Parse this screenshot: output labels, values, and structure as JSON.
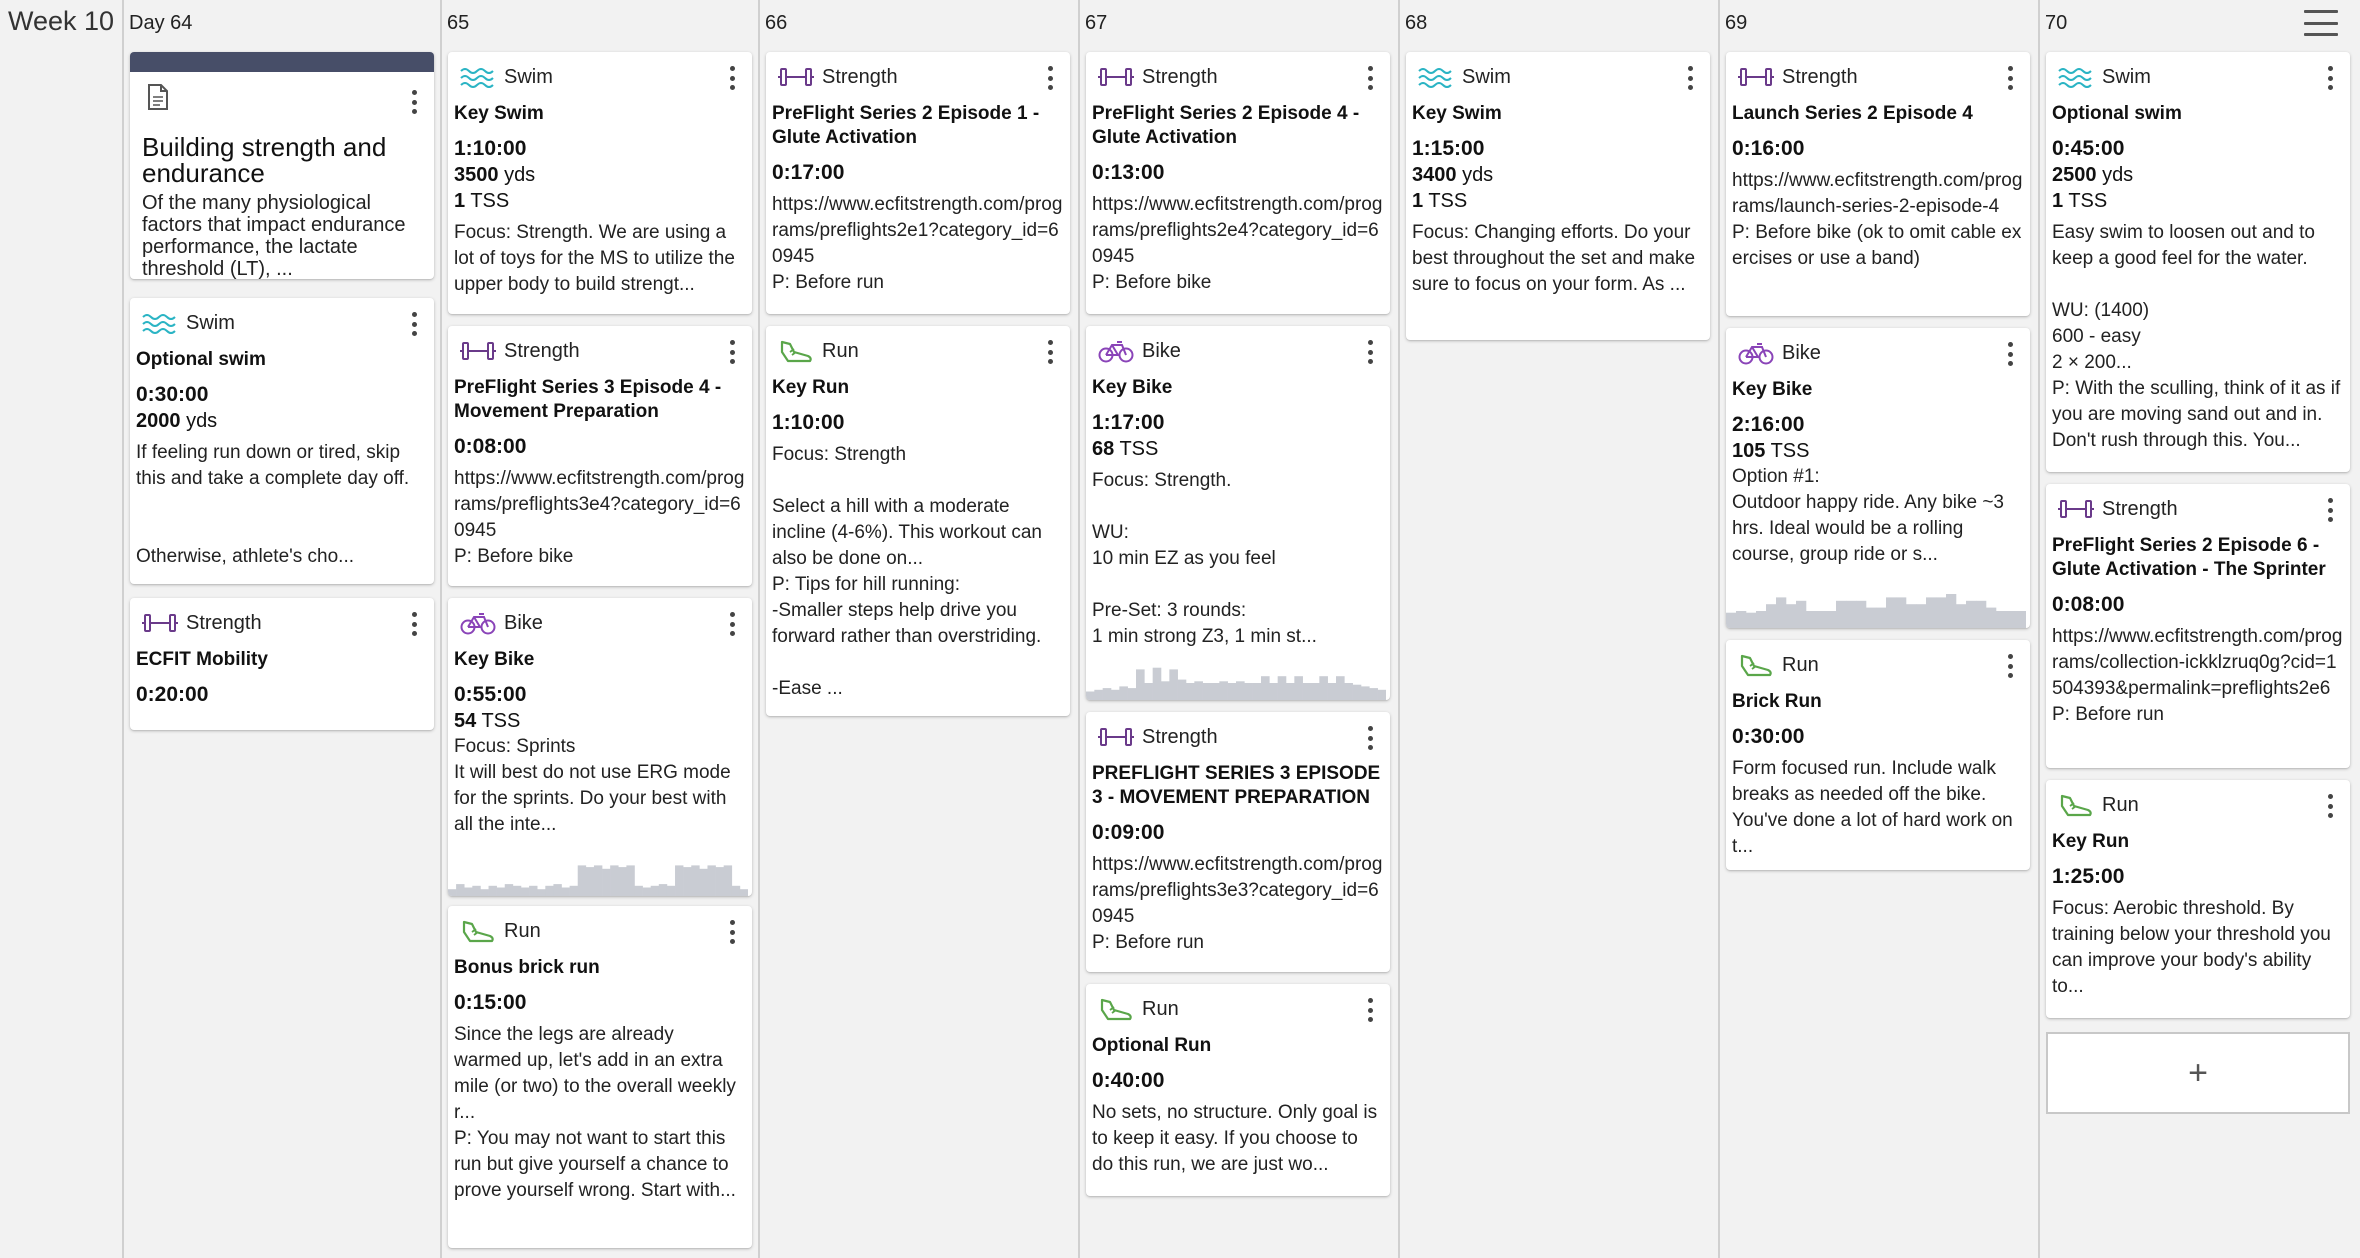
{
  "week": {
    "label": "Week 10"
  },
  "colors": {
    "swim": "#2bb4c4",
    "strength": "#6a3a8a",
    "run": "#5aa64a",
    "bike": "#8a44b8",
    "note_bar": "#474e68"
  },
  "days": [
    {
      "label": "Day 64"
    },
    {
      "label": "65"
    },
    {
      "label": "66"
    },
    {
      "label": "67"
    },
    {
      "label": "68"
    },
    {
      "label": "69"
    },
    {
      "label": "70"
    }
  ],
  "cards": {
    "d64_note": {
      "title": "Building strength and endurance",
      "desc": "Of the many physiological factors that impact endurance performance, the lactate threshold (LT), ..."
    },
    "d64_swim": {
      "sport": "Swim",
      "title": "Optional swim",
      "duration": "0:30:00",
      "dist_val": "2000",
      "dist_unit": "yds",
      "desc": "If feeling run down or tired, skip this and take a complete day off.\n\n\nOtherwise, athlete's cho..."
    },
    "d64_str": {
      "sport": "Strength",
      "title": "ECFIT Mobility",
      "duration": "0:20:00"
    },
    "d65_swim": {
      "sport": "Swim",
      "title": "Key Swim",
      "duration": "1:10:00",
      "dist_val": "3500",
      "dist_unit": "yds",
      "tss_val": "1",
      "tss_unit": "TSS",
      "desc": "Focus: Strength. We are using a lot of toys for the MS to utilize the upper body to build strengt..."
    },
    "d65_str": {
      "sport": "Strength",
      "title": "PreFlight Series 3 Episode 4 - Movement Preparation",
      "duration": "0:08:00",
      "desc": "https://www.ecfitstrength.com/programs/preflights3e4?category_id=60945\nP: Before bike"
    },
    "d65_bike": {
      "sport": "Bike",
      "title": "Key Bike",
      "duration": "0:55:00",
      "tss_val": "54",
      "tss_unit": "TSS",
      "desc": "Focus: Sprints\nIt will best do not use ERG mode for the sprints. Do your best with all the inte..."
    },
    "d65_run": {
      "sport": "Run",
      "title": "Bonus brick run",
      "duration": "0:15:00",
      "desc": "Since the legs are already warmed up, let's add in an extra mile (or two) to the overall weekly r...\nP: You may not want to start this run but give yourself a chance to prove yourself wrong. Start with..."
    },
    "d66_str": {
      "sport": "Strength",
      "title": "PreFlight Series 2 Episode 1 - Glute Activation",
      "duration": "0:17:00",
      "desc": "https://www.ecfitstrength.com/programs/preflights2e1?category_id=60945\nP: Before run"
    },
    "d66_run": {
      "sport": "Run",
      "title": "Key Run",
      "duration": "1:10:00",
      "desc": "Focus: Strength\n\nSelect a hill with a moderate incline (4-6%). This workout can also be done on...\nP: Tips for hill running:\n-Smaller steps help drive you forward rather than overstriding.\n\n-Ease ..."
    },
    "d67_str1": {
      "sport": "Strength",
      "title": "PreFlight Series 2 Episode 4 - Glute Activation",
      "duration": "0:13:00",
      "desc": "https://www.ecfitstrength.com/programs/preflights2e4?category_id=60945\nP: Before bike"
    },
    "d67_bike": {
      "sport": "Bike",
      "title": "Key Bike",
      "duration": "1:17:00",
      "tss_val": "68",
      "tss_unit": "TSS",
      "desc": "Focus: Strength.\n\nWU:\n10 min EZ as you feel\n\nPre-Set: 3 rounds:\n1 min strong Z3, 1 min st..."
    },
    "d67_str2": {
      "sport": "Strength",
      "title": "PREFLIGHT SERIES 3 EPISODE 3 - MOVEMENT PREPARATION",
      "duration": "0:09:00",
      "desc": "https://www.ecfitstrength.com/programs/preflights3e3?category_id=60945\nP: Before run"
    },
    "d67_run": {
      "sport": "Run",
      "title": "Optional Run",
      "duration": "0:40:00",
      "desc": "No sets, no structure. Only goal is to keep it easy. If you choose to do this run, we are just wo..."
    },
    "d68_swim": {
      "sport": "Swim",
      "title": "Key Swim",
      "duration": "1:15:00",
      "dist_val": "3400",
      "dist_unit": "yds",
      "tss_val": "1",
      "tss_unit": "TSS",
      "desc": "Focus: Changing efforts. Do your best throughout the set and make sure to focus on your form. As ..."
    },
    "d69_str": {
      "sport": "Strength",
      "title": "Launch Series 2 Episode 4",
      "duration": "0:16:00",
      "desc": "https://www.ecfitstrength.com/programs/launch-series-2-episode-4\nP: Before bike (ok to omit cable exercises or use a band)"
    },
    "d69_bike": {
      "sport": "Bike",
      "title": "Key Bike",
      "duration": "2:16:00",
      "tss_val": "105",
      "tss_unit": "TSS",
      "desc": "Option #1:\nOutdoor happy ride. Any bike ~3 hrs. Ideal would be a rolling course, group ride or s..."
    },
    "d69_run": {
      "sport": "Run",
      "title": "Brick Run",
      "duration": "0:30:00",
      "desc": "Form focused run. Include walk breaks as needed off the bike. You've done a lot of hard work on t..."
    },
    "d70_swim": {
      "sport": "Swim",
      "title": "Optional swim",
      "duration": "0:45:00",
      "dist_val": "2500",
      "dist_unit": "yds",
      "tss_val": "1",
      "tss_unit": "TSS",
      "desc": "Easy swim to loosen out and to keep a good feel for the water.\n\nWU: (1400)\n600 - easy\n2 × 200...\nP: With the sculling, think of it as if you are moving sand out and in. Don't rush through this. You..."
    },
    "d70_str": {
      "sport": "Strength",
      "title": "PreFlight Series 2 Episode 6 - Glute Activation - The Sprinter",
      "duration": "0:08:00",
      "desc": "https://www.ecfitstrength.com/programs/collection-ickklzruq0g?cid=1504393&permalink=preflights2e6\nP: Before run"
    },
    "d70_run": {
      "sport": "Run",
      "title": "Key Run",
      "duration": "1:25:00",
      "desc": "Focus: Aerobic threshold. By training below your threshold you can improve your body's ability to..."
    },
    "add": {
      "label": "+"
    }
  },
  "power_profiles": {
    "d65_bike": [
      0.2,
      0.35,
      0.25,
      0.3,
      0.2,
      0.3,
      0.25,
      0.35,
      0.3,
      0.25,
      0.3,
      0.2,
      0.3,
      0.35,
      0.25,
      0.3,
      0.9,
      0.85,
      0.9,
      0.8,
      0.9,
      0.85,
      0.9,
      0.3,
      0.25,
      0.3,
      0.35,
      0.3,
      0.9,
      0.85,
      0.9,
      0.8,
      0.9,
      0.85,
      0.9,
      0.3,
      0.2
    ],
    "d67_bike": [
      0.25,
      0.3,
      0.35,
      0.3,
      0.4,
      0.35,
      0.9,
      0.5,
      0.95,
      0.55,
      0.9,
      0.6,
      0.5,
      0.55,
      0.5,
      0.5,
      0.55,
      0.5,
      0.55,
      0.5,
      0.5,
      0.7,
      0.5,
      0.7,
      0.5,
      0.7,
      0.5,
      0.5,
      0.7,
      0.5,
      0.7,
      0.5,
      0.45,
      0.4,
      0.35,
      0.3
    ],
    "d69_bike": [
      0.45,
      0.5,
      0.45,
      0.5,
      0.7,
      0.9,
      0.7,
      0.8,
      0.5,
      0.5,
      0.5,
      0.8,
      0.8,
      0.8,
      0.6,
      0.6,
      0.9,
      0.9,
      0.7,
      0.7,
      0.9,
      0.9,
      1.0,
      0.7,
      0.8,
      0.8,
      0.6,
      0.5,
      0.5,
      0.5
    ]
  }
}
